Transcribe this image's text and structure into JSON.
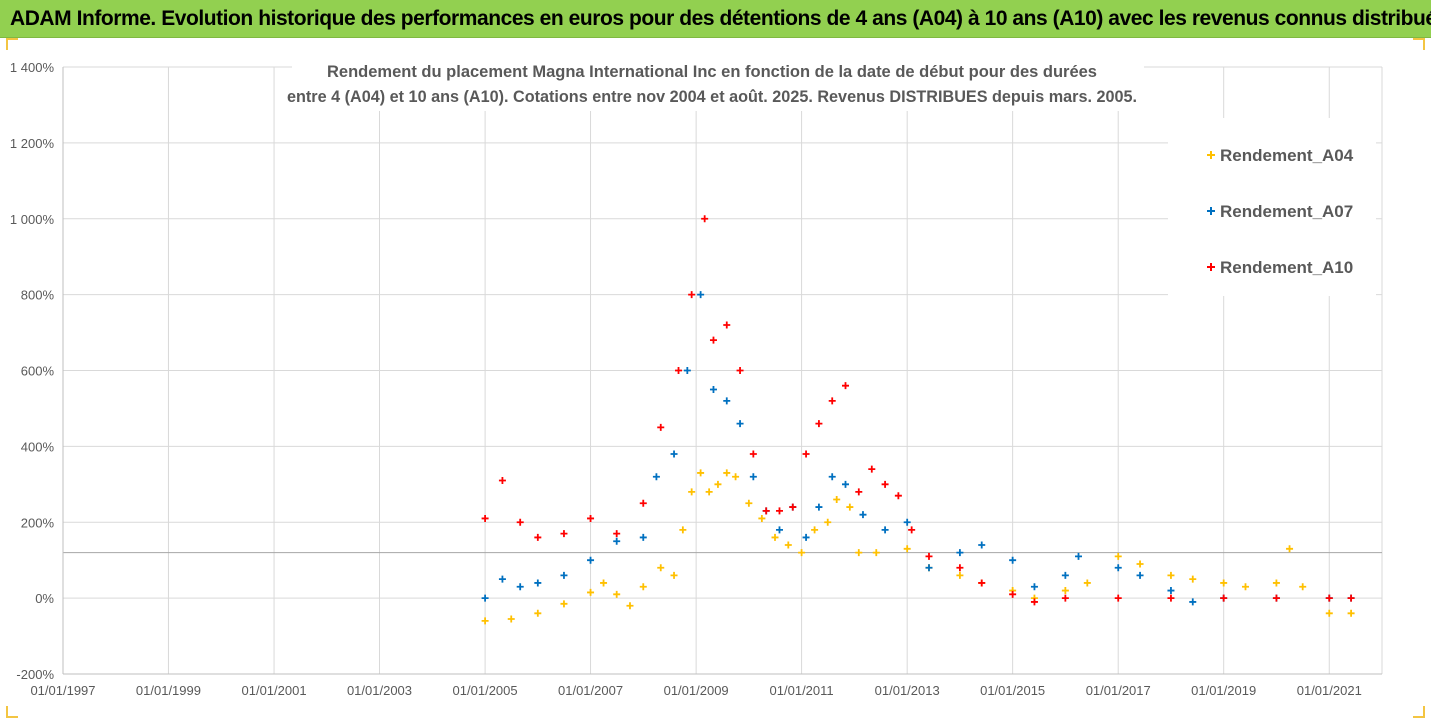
{
  "banner": "ADAM Informe. Evolution historique des performances en euros pour des détentions de 4 ans (A04) à 10 ans (A10) avec les revenus connus distribués",
  "chart_data": {
    "type": "scatter",
    "title_lines": [
      "Rendement du placement Magna International Inc en fonction de la date de début pour des durées",
      "entre 4 (A04) et 10 ans (A10). Cotations entre nov 2004 et août. 2025. Revenus DISTRIBUES depuis mars. 2005."
    ],
    "xlabel": "",
    "ylabel": "",
    "x_ticks": [
      "01/01/1997",
      "01/01/1999",
      "01/01/2001",
      "01/01/2003",
      "01/01/2005",
      "01/01/2007",
      "01/01/2009",
      "01/01/2011",
      "01/01/2013",
      "01/01/2015",
      "01/01/2017",
      "01/01/2019",
      "01/01/2021"
    ],
    "xlim": [
      "01/01/1997",
      "01/01/2022"
    ],
    "y_ticks": [
      "-200%",
      "0%",
      "200%",
      "400%",
      "600%",
      "800%",
      "1 000%",
      "1 200%",
      "1 400%"
    ],
    "ylim": [
      -200,
      1400
    ],
    "reference_line_y": 120,
    "grid": true,
    "legend_position": "top-right",
    "marker": "+",
    "series": [
      {
        "name": "Rendement_A04",
        "color": "#ffc000",
        "points": [
          [
            "01/01/2005",
            -60
          ],
          [
            "01/07/2005",
            -55
          ],
          [
            "01/01/2006",
            -40
          ],
          [
            "01/07/2006",
            -15
          ],
          [
            "01/01/2007",
            15
          ],
          [
            "01/04/2007",
            40
          ],
          [
            "01/07/2007",
            10
          ],
          [
            "01/10/2007",
            -20
          ],
          [
            "01/01/2008",
            30
          ],
          [
            "01/05/2008",
            80
          ],
          [
            "01/08/2008",
            60
          ],
          [
            "01/10/2008",
            180
          ],
          [
            "01/12/2008",
            280
          ],
          [
            "01/02/2009",
            330
          ],
          [
            "01/04/2009",
            280
          ],
          [
            "01/06/2009",
            300
          ],
          [
            "01/08/2009",
            330
          ],
          [
            "01/10/2009",
            320
          ],
          [
            "01/01/2010",
            250
          ],
          [
            "01/04/2010",
            210
          ],
          [
            "01/07/2010",
            160
          ],
          [
            "01/10/2010",
            140
          ],
          [
            "01/01/2011",
            120
          ],
          [
            "01/04/2011",
            180
          ],
          [
            "01/07/2011",
            200
          ],
          [
            "01/09/2011",
            260
          ],
          [
            "01/12/2011",
            240
          ],
          [
            "01/02/2012",
            120
          ],
          [
            "01/06/2012",
            120
          ],
          [
            "01/01/2013",
            130
          ],
          [
            "01/06/2013",
            80
          ],
          [
            "01/01/2014",
            60
          ],
          [
            "01/06/2014",
            40
          ],
          [
            "01/01/2015",
            20
          ],
          [
            "01/06/2015",
            0
          ],
          [
            "01/01/2016",
            20
          ],
          [
            "01/06/2016",
            40
          ],
          [
            "01/01/2017",
            110
          ],
          [
            "01/06/2017",
            90
          ],
          [
            "01/01/2018",
            60
          ],
          [
            "01/06/2018",
            50
          ],
          [
            "01/01/2019",
            40
          ],
          [
            "01/06/2019",
            30
          ],
          [
            "01/01/2020",
            40
          ],
          [
            "01/04/2020",
            130
          ],
          [
            "01/07/2020",
            30
          ],
          [
            "01/01/2021",
            -40
          ],
          [
            "01/06/2021",
            -40
          ]
        ]
      },
      {
        "name": "Rendement_A07",
        "color": "#0070c0",
        "points": [
          [
            "01/01/2005",
            0
          ],
          [
            "01/05/2005",
            50
          ],
          [
            "01/09/2005",
            30
          ],
          [
            "01/01/2006",
            40
          ],
          [
            "01/07/2006",
            60
          ],
          [
            "01/01/2007",
            100
          ],
          [
            "01/07/2007",
            150
          ],
          [
            "01/01/2008",
            160
          ],
          [
            "01/04/2008",
            320
          ],
          [
            "01/08/2008",
            380
          ],
          [
            "01/11/2008",
            600
          ],
          [
            "01/02/2009",
            800
          ],
          [
            "01/05/2009",
            550
          ],
          [
            "01/08/2009",
            520
          ],
          [
            "01/11/2009",
            460
          ],
          [
            "01/02/2010",
            320
          ],
          [
            "01/05/2010",
            230
          ],
          [
            "01/08/2010",
            180
          ],
          [
            "01/11/2010",
            240
          ],
          [
            "01/02/2011",
            160
          ],
          [
            "01/05/2011",
            240
          ],
          [
            "01/08/2011",
            320
          ],
          [
            "01/11/2011",
            300
          ],
          [
            "01/03/2012",
            220
          ],
          [
            "01/08/2012",
            180
          ],
          [
            "01/01/2013",
            200
          ],
          [
            "01/06/2013",
            80
          ],
          [
            "01/01/2014",
            120
          ],
          [
            "01/06/2014",
            140
          ],
          [
            "01/01/2015",
            100
          ],
          [
            "01/06/2015",
            30
          ],
          [
            "01/01/2016",
            60
          ],
          [
            "01/04/2016",
            110
          ],
          [
            "01/01/2017",
            80
          ],
          [
            "01/06/2017",
            60
          ],
          [
            "01/01/2018",
            20
          ],
          [
            "01/06/2018",
            -10
          ],
          [
            "01/01/2019",
            0
          ],
          [
            "01/01/2020",
            0
          ],
          [
            "01/01/2021",
            0
          ],
          [
            "01/06/2021",
            0
          ]
        ]
      },
      {
        "name": "Rendement_A10",
        "color": "#ff0000",
        "points": [
          [
            "01/01/2005",
            210
          ],
          [
            "01/05/2005",
            310
          ],
          [
            "01/09/2005",
            200
          ],
          [
            "01/01/2006",
            160
          ],
          [
            "01/07/2006",
            170
          ],
          [
            "01/01/2007",
            210
          ],
          [
            "01/07/2007",
            170
          ],
          [
            "01/01/2008",
            250
          ],
          [
            "01/05/2008",
            450
          ],
          [
            "01/09/2008",
            600
          ],
          [
            "01/12/2008",
            800
          ],
          [
            "01/03/2009",
            1000
          ],
          [
            "01/05/2009",
            680
          ],
          [
            "01/08/2009",
            720
          ],
          [
            "01/11/2009",
            600
          ],
          [
            "01/02/2010",
            380
          ],
          [
            "01/05/2010",
            230
          ],
          [
            "01/08/2010",
            230
          ],
          [
            "01/11/2010",
            240
          ],
          [
            "01/02/2011",
            380
          ],
          [
            "01/05/2011",
            460
          ],
          [
            "01/08/2011",
            520
          ],
          [
            "01/11/2011",
            560
          ],
          [
            "01/02/2012",
            280
          ],
          [
            "01/05/2012",
            340
          ],
          [
            "01/08/2012",
            300
          ],
          [
            "01/11/2012",
            270
          ],
          [
            "01/02/2013",
            180
          ],
          [
            "01/06/2013",
            110
          ],
          [
            "01/01/2014",
            80
          ],
          [
            "01/06/2014",
            40
          ],
          [
            "01/01/2015",
            10
          ],
          [
            "01/06/2015",
            -10
          ],
          [
            "01/01/2016",
            0
          ],
          [
            "01/01/2017",
            0
          ],
          [
            "01/01/2018",
            0
          ],
          [
            "01/01/2019",
            0
          ],
          [
            "01/01/2020",
            0
          ],
          [
            "01/01/2021",
            0
          ],
          [
            "01/06/2021",
            0
          ]
        ]
      }
    ]
  }
}
